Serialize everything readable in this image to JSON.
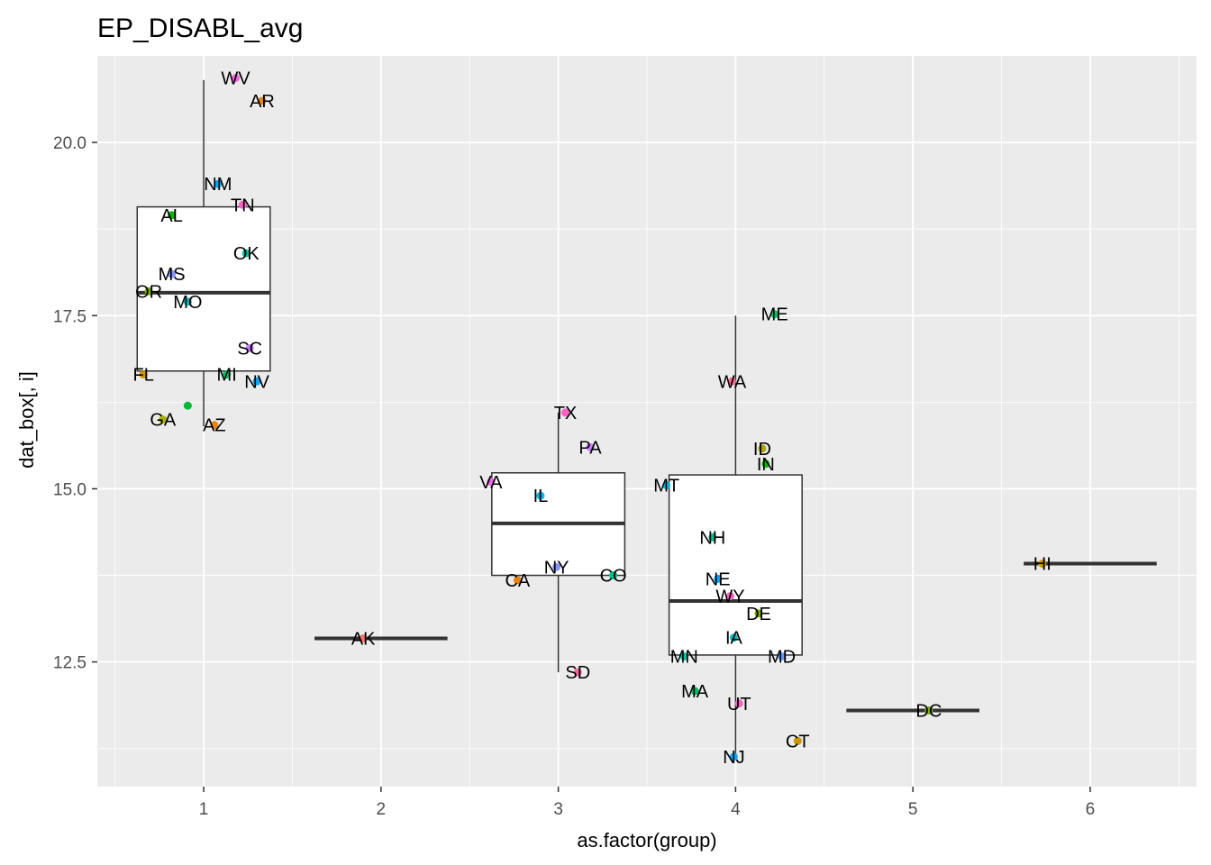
{
  "chart_data": {
    "type": "box",
    "title": "EP_DISABL_avg",
    "xlabel": "as.factor(group)",
    "ylabel": "dat_box[, i]",
    "xlim": [
      0.4,
      6.6
    ],
    "ylim": [
      10.7,
      21.25
    ],
    "x_ticks": [
      "1",
      "2",
      "3",
      "4",
      "5",
      "6"
    ],
    "y_ticks": [
      {
        "value": 12.5,
        "label": "12.5"
      },
      {
        "value": 15.0,
        "label": "15.0"
      },
      {
        "value": 17.5,
        "label": "17.5"
      },
      {
        "value": 20.0,
        "label": "20.0"
      }
    ],
    "grid": true,
    "boxes": [
      {
        "group": 1,
        "lower_whisker": 15.9,
        "q1": 16.7,
        "median": 17.83,
        "q3": 19.07,
        "upper_whisker": 20.9
      },
      {
        "group": 2,
        "median": 12.84
      },
      {
        "group": 3,
        "lower_whisker": 12.35,
        "q1": 13.75,
        "median": 14.5,
        "q3": 15.23,
        "upper_whisker": 16.1
      },
      {
        "group": 4,
        "lower_whisker": 11.1,
        "q1": 12.6,
        "median": 13.38,
        "q3": 15.2,
        "upper_whisker": 17.5
      },
      {
        "group": 5,
        "median": 11.8
      },
      {
        "group": 6,
        "median": 13.92
      }
    ],
    "outliers": [
      {
        "group": 1,
        "x": 0.91,
        "y": 16.2,
        "color": "#00ba38"
      }
    ],
    "points": [
      {
        "label": "WV",
        "group": 1,
        "x": 1.18,
        "y": 20.93,
        "color": "#f564e3"
      },
      {
        "label": "AR",
        "group": 1,
        "x": 1.33,
        "y": 20.6,
        "color": "#e68613"
      },
      {
        "label": "NM",
        "group": 1,
        "x": 1.08,
        "y": 19.4,
        "color": "#00a9ff"
      },
      {
        "label": "TN",
        "group": 1,
        "x": 1.22,
        "y": 19.1,
        "color": "#ff61c3"
      },
      {
        "label": "AL",
        "group": 1,
        "x": 0.82,
        "y": 18.95,
        "color": "#0cb702"
      },
      {
        "label": "OK",
        "group": 1,
        "x": 1.24,
        "y": 18.4,
        "color": "#00c19a"
      },
      {
        "label": "MS",
        "group": 1,
        "x": 0.82,
        "y": 18.1,
        "color": "#8494ff"
      },
      {
        "label": "OR",
        "group": 1,
        "x": 0.69,
        "y": 17.85,
        "color": "#7cae00"
      },
      {
        "label": "MO",
        "group": 1,
        "x": 0.91,
        "y": 17.7,
        "color": "#00bfc4"
      },
      {
        "label": "SC",
        "group": 1,
        "x": 1.26,
        "y": 17.03,
        "color": "#c77cff"
      },
      {
        "label": "FL",
        "group": 1,
        "x": 0.66,
        "y": 16.65,
        "color": "#cd9600"
      },
      {
        "label": "MI",
        "group": 1,
        "x": 1.13,
        "y": 16.65,
        "color": "#00be67"
      },
      {
        "label": "NV",
        "group": 1,
        "x": 1.3,
        "y": 16.55,
        "color": "#00a9ff"
      },
      {
        "label": "GA",
        "group": 1,
        "x": 0.77,
        "y": 16.0,
        "color": "#abb300"
      },
      {
        "label": "AZ",
        "group": 1,
        "x": 1.06,
        "y": 15.92,
        "color": "#e68613"
      },
      {
        "label": "AK",
        "group": 2,
        "x": 1.9,
        "y": 12.84,
        "color": "#f8766d"
      },
      {
        "label": "TX",
        "group": 3,
        "x": 3.04,
        "y": 16.1,
        "color": "#ff61c3"
      },
      {
        "label": "PA",
        "group": 3,
        "x": 3.18,
        "y": 15.6,
        "color": "#c77cff"
      },
      {
        "label": "VA",
        "group": 3,
        "x": 2.62,
        "y": 15.1,
        "color": "#ed68ed"
      },
      {
        "label": "IL",
        "group": 3,
        "x": 2.9,
        "y": 14.9,
        "color": "#00b8e7"
      },
      {
        "label": "NY",
        "group": 3,
        "x": 2.99,
        "y": 13.87,
        "color": "#8494ff"
      },
      {
        "label": "CO",
        "group": 3,
        "x": 3.31,
        "y": 13.75,
        "color": "#00c08b"
      },
      {
        "label": "CA",
        "group": 3,
        "x": 2.77,
        "y": 13.68,
        "color": "#e68613"
      },
      {
        "label": "SD",
        "group": 3,
        "x": 3.11,
        "y": 12.35,
        "color": "#ff68a1"
      },
      {
        "label": "ME",
        "group": 4,
        "x": 4.22,
        "y": 17.52,
        "color": "#00be67"
      },
      {
        "label": "WA",
        "group": 4,
        "x": 3.98,
        "y": 16.55,
        "color": "#ff6a98"
      },
      {
        "label": "ID",
        "group": 4,
        "x": 4.15,
        "y": 15.58,
        "color": "#aba300"
      },
      {
        "label": "IN",
        "group": 4,
        "x": 4.17,
        "y": 15.36,
        "color": "#0cb702"
      },
      {
        "label": "MT",
        "group": 4,
        "x": 3.61,
        "y": 15.05,
        "color": "#00b8e7"
      },
      {
        "label": "NH",
        "group": 4,
        "x": 3.87,
        "y": 14.3,
        "color": "#00c19a"
      },
      {
        "label": "NE",
        "group": 4,
        "x": 3.9,
        "y": 13.7,
        "color": "#00a9ff"
      },
      {
        "label": "WY",
        "group": 4,
        "x": 3.97,
        "y": 13.45,
        "color": "#ff61c3"
      },
      {
        "label": "DE",
        "group": 4,
        "x": 4.13,
        "y": 13.2,
        "color": "#7cae00"
      },
      {
        "label": "IA",
        "group": 4,
        "x": 3.99,
        "y": 12.85,
        "color": "#00bfc4"
      },
      {
        "label": "MD",
        "group": 4,
        "x": 4.26,
        "y": 12.58,
        "color": "#619cff"
      },
      {
        "label": "MN",
        "group": 4,
        "x": 3.71,
        "y": 12.58,
        "color": "#00c19f"
      },
      {
        "label": "MA",
        "group": 4,
        "x": 3.77,
        "y": 12.08,
        "color": "#00be67"
      },
      {
        "label": "UT",
        "group": 4,
        "x": 4.02,
        "y": 11.9,
        "color": "#ff61c3"
      },
      {
        "label": "CT",
        "group": 4,
        "x": 4.35,
        "y": 11.36,
        "color": "#cd9600"
      },
      {
        "label": "NJ",
        "group": 4,
        "x": 3.99,
        "y": 11.13,
        "color": "#00a9ff"
      },
      {
        "label": "DC",
        "group": 5,
        "x": 5.09,
        "y": 11.8,
        "color": "#7cae00"
      },
      {
        "label": "HI",
        "group": 6,
        "x": 5.73,
        "y": 13.92,
        "color": "#cd9600"
      }
    ]
  }
}
